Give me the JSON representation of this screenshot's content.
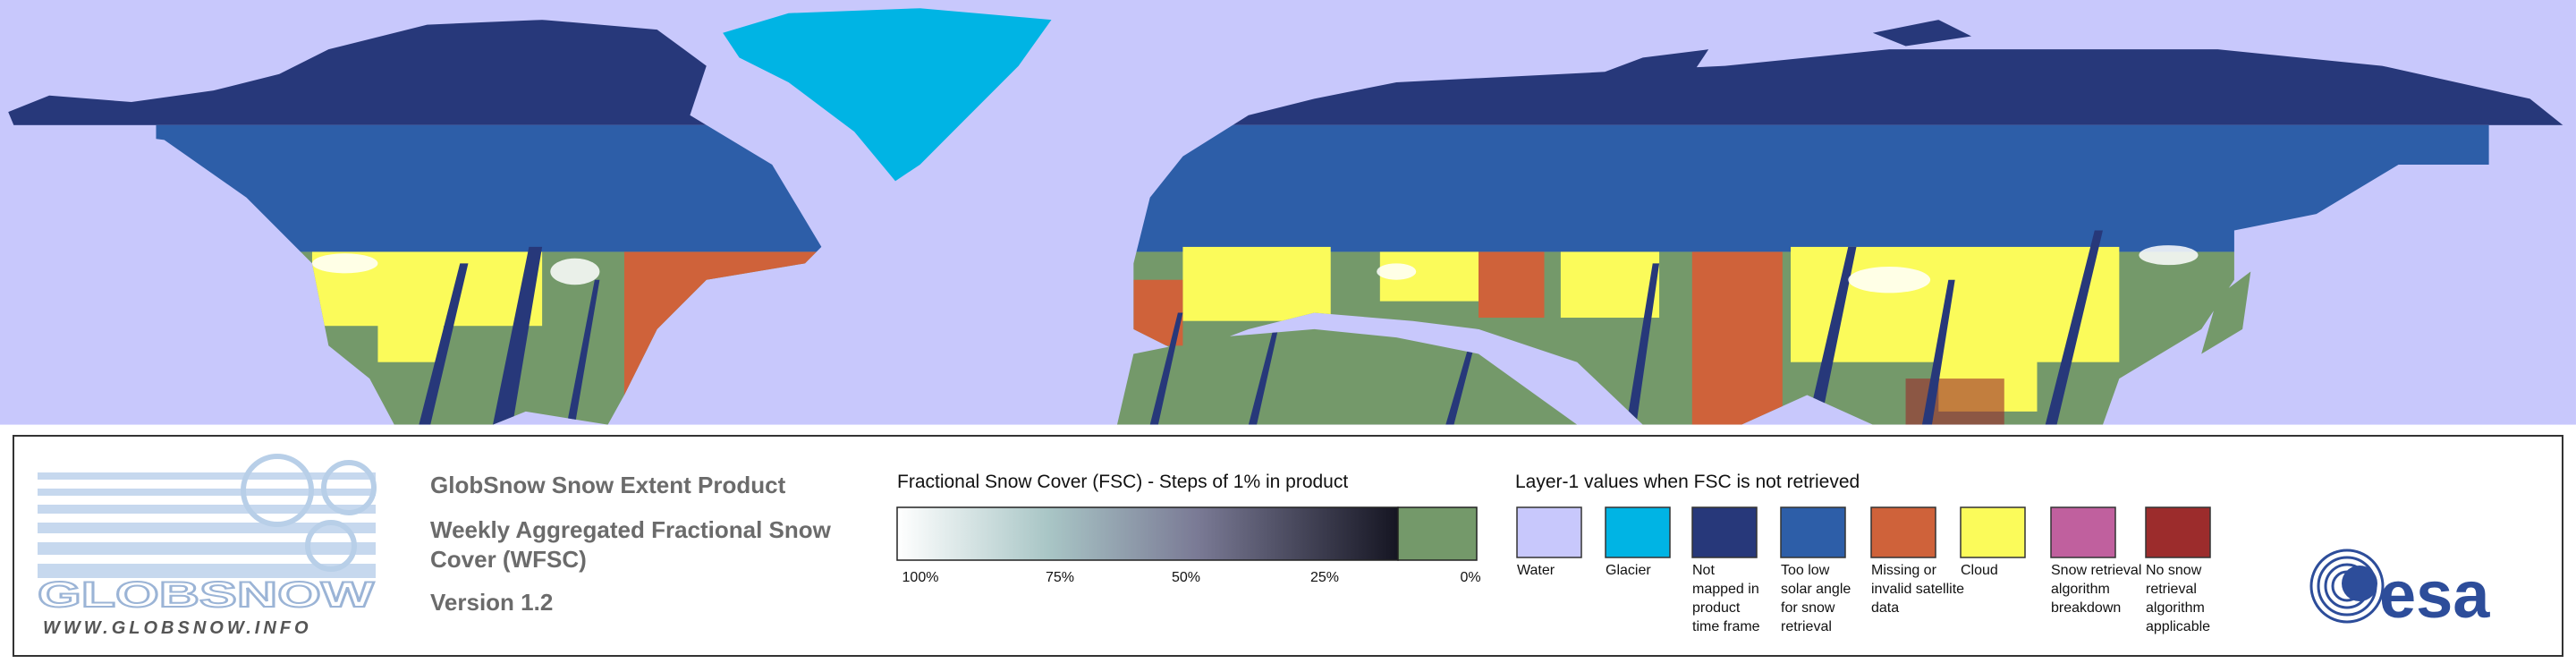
{
  "logo": {
    "name": "GLOBSNOW",
    "url": "WWW.GLOBSNOW.INFO"
  },
  "product": {
    "title": "GlobSnow Snow Extent Product",
    "subtitle": [
      "Weekly Aggregated Fractional Snow",
      "Cover (WFSC)"
    ],
    "version": "Version 1.2"
  },
  "fsc_legend": {
    "title": "Fractional Snow Cover (FSC) - Steps of 1% in product",
    "labels": [
      "100%",
      "75%",
      "50%",
      "25%",
      "0%"
    ]
  },
  "layer1_legend": {
    "title": "Layer-1 values when FSC is not retrieved",
    "items": [
      {
        "label": [
          "Water"
        ],
        "color": "#c8c8fc"
      },
      {
        "label": [
          "Glacier"
        ],
        "color": "#00b4e4"
      },
      {
        "label": [
          "Not",
          "mapped in",
          "product",
          "time frame"
        ],
        "color": "#27387a"
      },
      {
        "label": [
          "Too low",
          "solar angle",
          "for snow",
          "retrieval"
        ],
        "color": "#2d5ea8"
      },
      {
        "label": [
          "Missing or",
          "invalid satellite",
          "data"
        ],
        "color": "#cf623a"
      },
      {
        "label": [
          "Cloud"
        ],
        "color": "#fbfb5a"
      },
      {
        "label": [
          "Snow retrieval",
          "algorithm",
          "breakdown"
        ],
        "color": "#c0609e"
      },
      {
        "label": [
          "No snow",
          "retrieval",
          "algorithm",
          "applicable"
        ],
        "color": "#9c2c2c"
      }
    ]
  },
  "esa_logo": "esa"
}
